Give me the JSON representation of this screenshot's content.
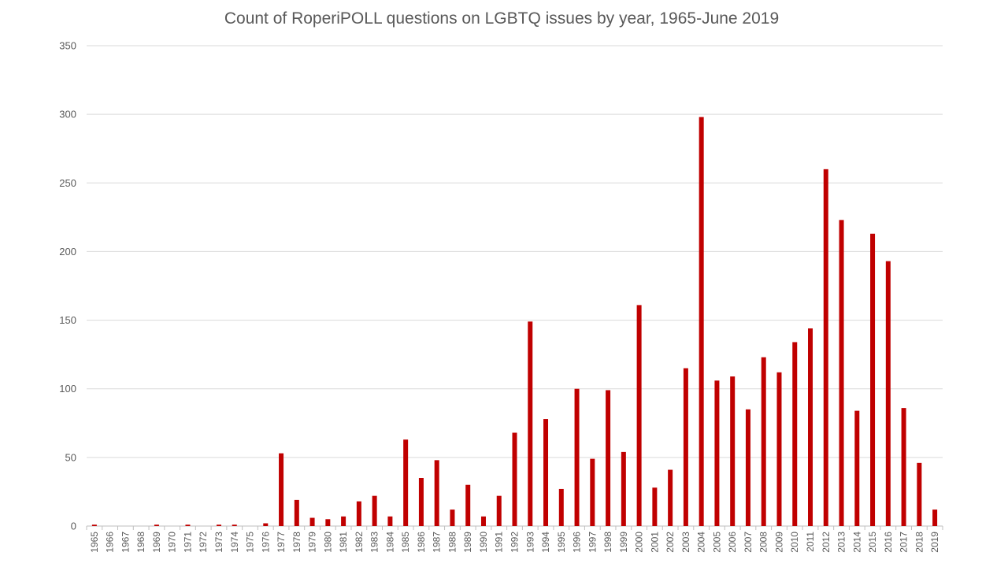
{
  "chart_data": {
    "type": "bar",
    "title": "Count of RoperiPOLL questions on LGBTQ issues by year, 1965-June 2019",
    "xlabel": "",
    "ylabel": "",
    "ylim": [
      0,
      350
    ],
    "yticks": [
      0,
      50,
      100,
      150,
      200,
      250,
      300,
      350
    ],
    "grid": true,
    "legend": "none",
    "bar_color": "#C00000",
    "categories": [
      "1965",
      "1966",
      "1967",
      "1968",
      "1969",
      "1970",
      "1971",
      "1972",
      "1973",
      "1974",
      "1975",
      "1976",
      "1977",
      "1978",
      "1979",
      "1980",
      "1981",
      "1982",
      "1983",
      "1984",
      "1985",
      "1986",
      "1987",
      "1988",
      "1989",
      "1990",
      "1991",
      "1992",
      "1993",
      "1994",
      "1995",
      "1996",
      "1997",
      "1998",
      "1999",
      "2000",
      "2001",
      "2002",
      "2003",
      "2004",
      "2005",
      "2006",
      "2007",
      "2008",
      "2009",
      "2010",
      "2011",
      "2012",
      "2013",
      "2014",
      "2015",
      "2016",
      "2017",
      "2018",
      "2019"
    ],
    "values": [
      1,
      0,
      0,
      0,
      1,
      0,
      1,
      0,
      1,
      1,
      0,
      2,
      53,
      19,
      6,
      5,
      7,
      18,
      22,
      7,
      63,
      35,
      48,
      12,
      30,
      7,
      22,
      68,
      149,
      78,
      27,
      100,
      49,
      99,
      54,
      161,
      28,
      41,
      115,
      298,
      106,
      109,
      85,
      123,
      112,
      134,
      144,
      260,
      223,
      84,
      213,
      193,
      86,
      46,
      12
    ]
  }
}
